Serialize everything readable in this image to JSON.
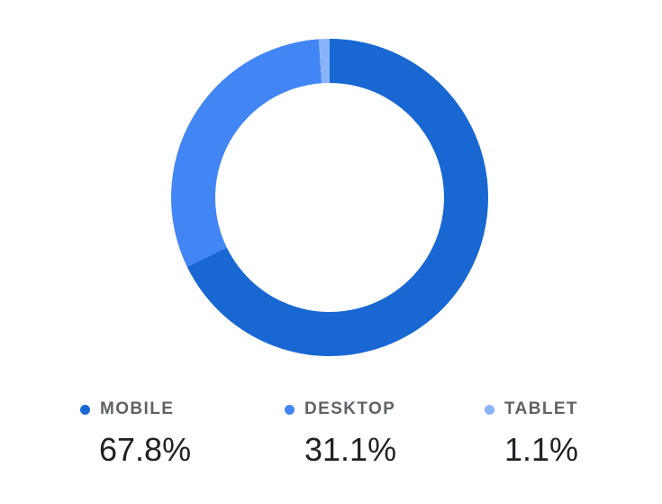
{
  "chart_data": {
    "type": "pie",
    "variant": "donut",
    "title": "",
    "categories": [
      "MOBILE",
      "DESKTOP",
      "TABLET"
    ],
    "values": [
      67.8,
      31.1,
      1.1
    ],
    "value_labels": [
      "67.8%",
      "31.1%",
      "1.1%"
    ],
    "colors": [
      "#1967d2",
      "#4285f4",
      "#8ab4f8"
    ],
    "legend_position": "bottom"
  }
}
